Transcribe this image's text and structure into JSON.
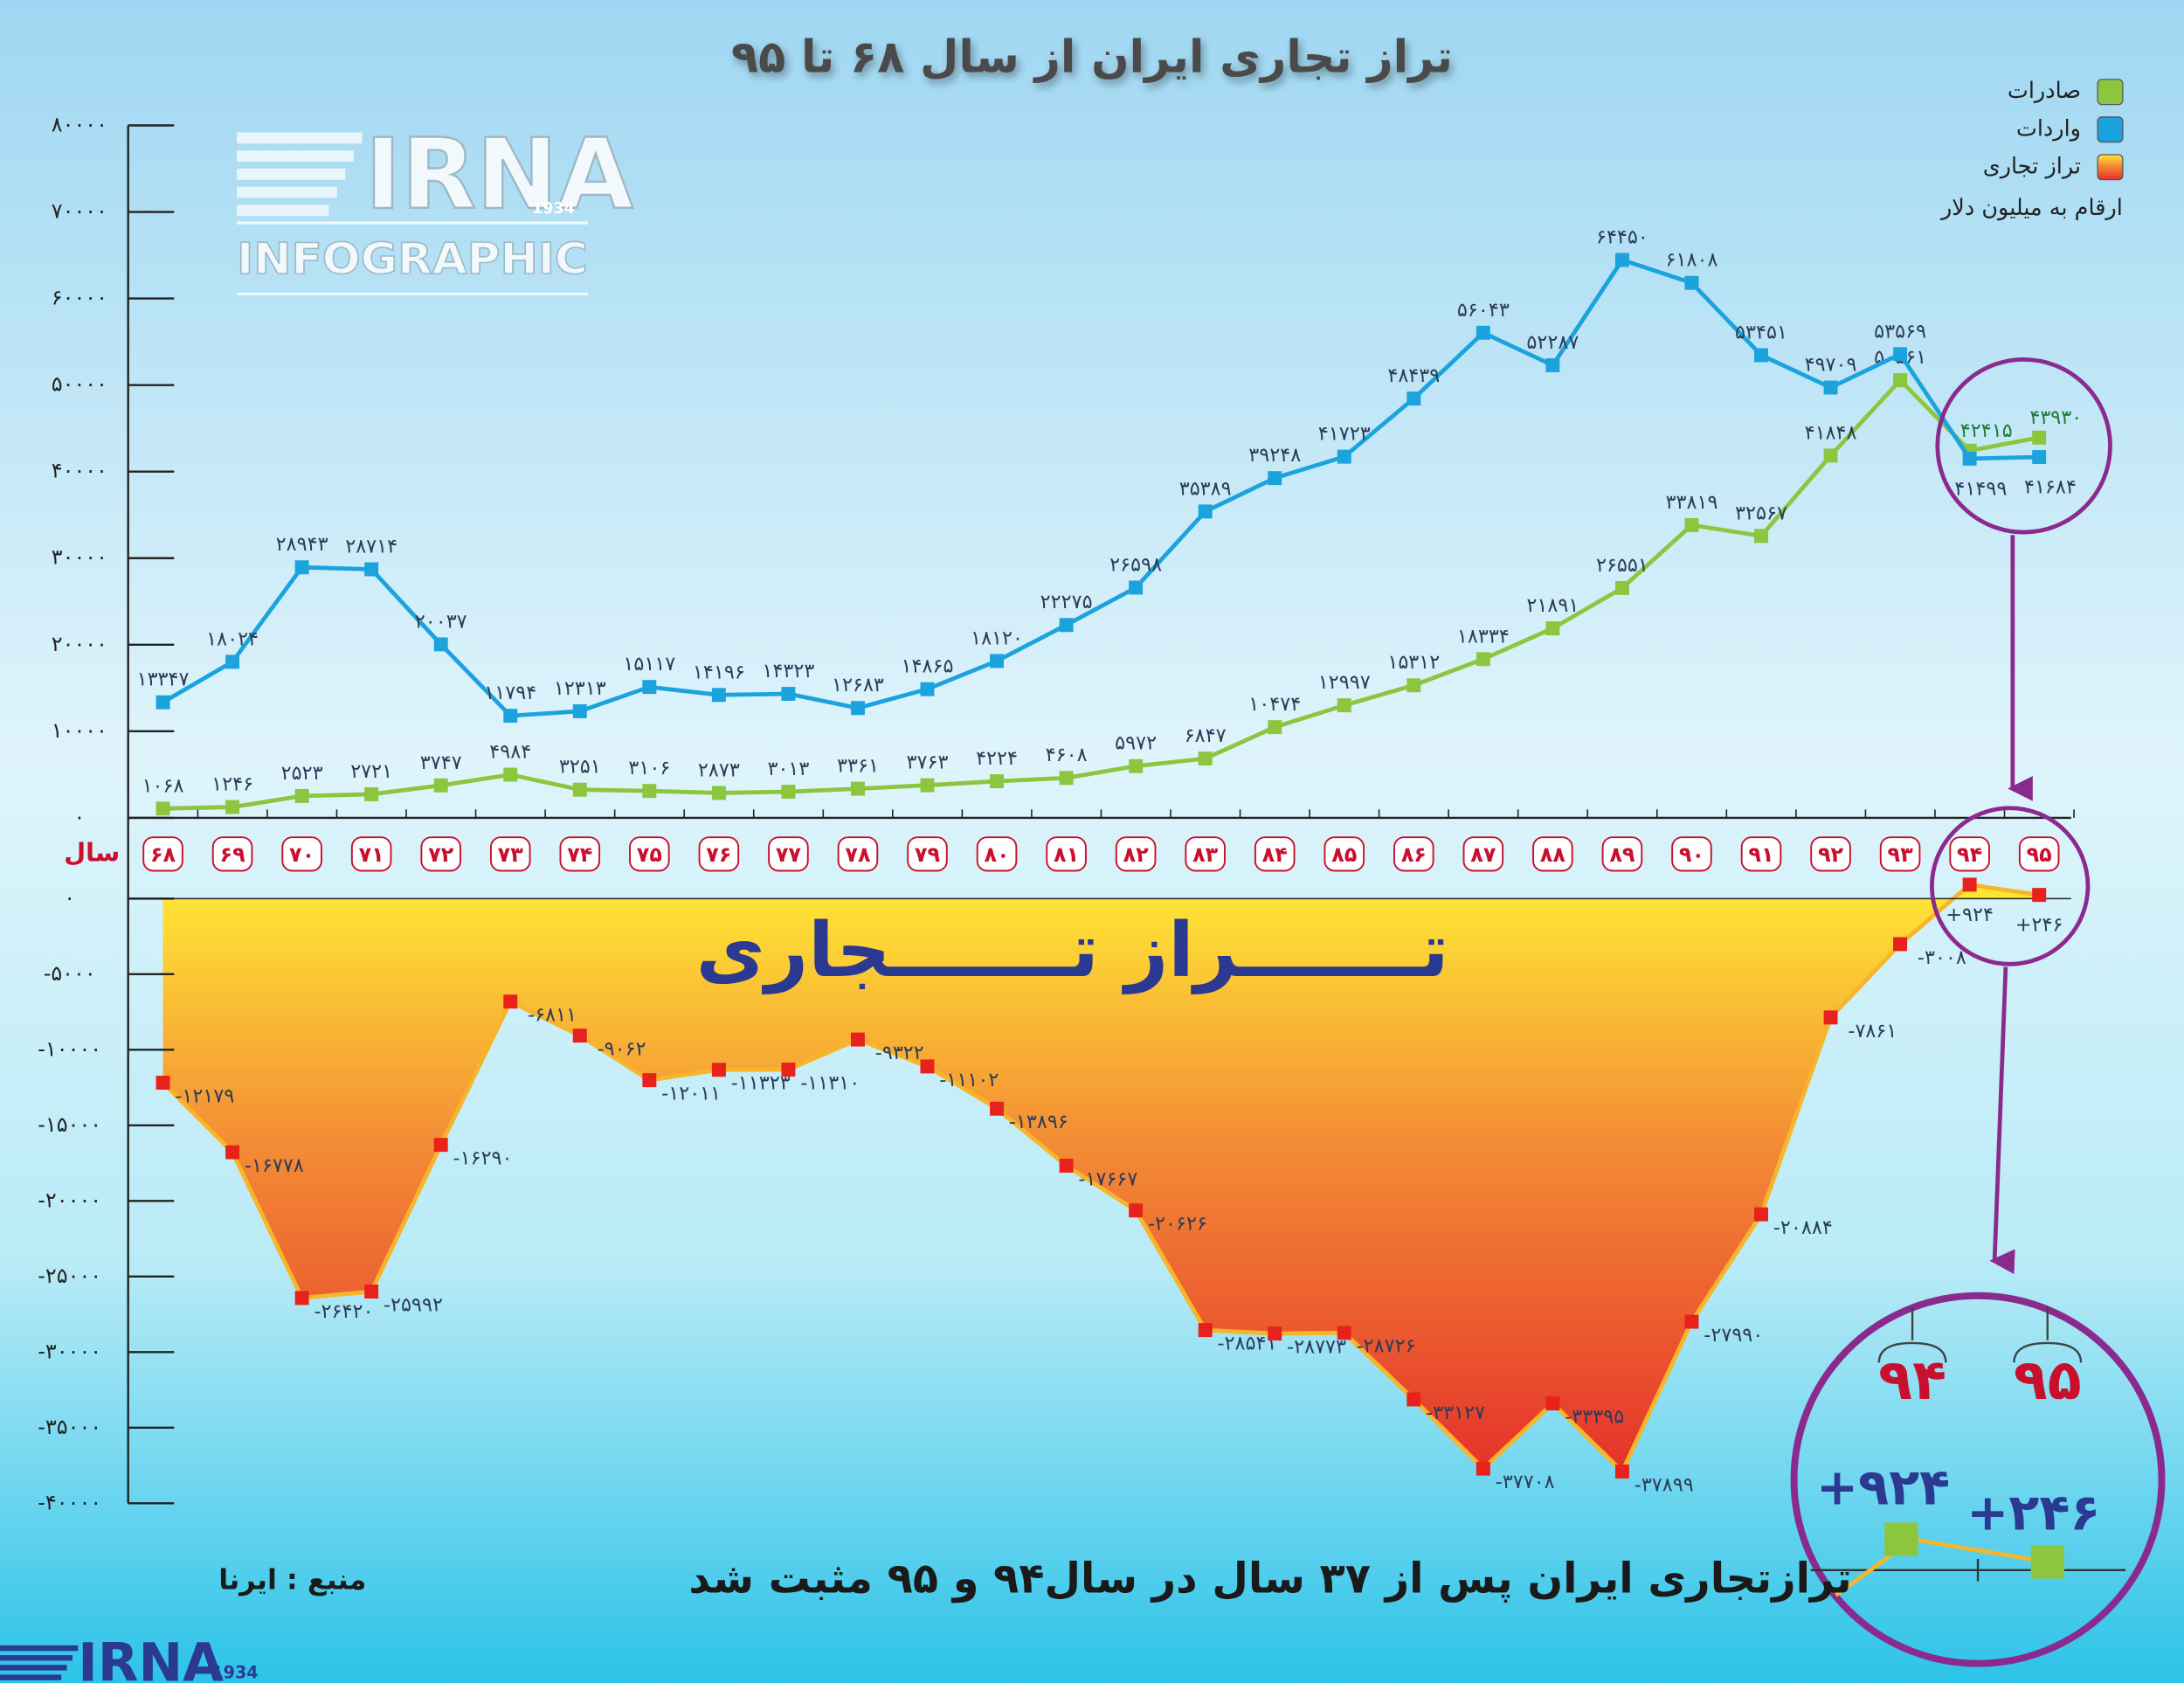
{
  "logo": {
    "name": "IRNA",
    "subtitle": "INFOGRAPHIC",
    "year": "1934"
  },
  "footer": {
    "headline": "ترازتجاری ایران پس از ۳۷ سال در سال۹۴ و ۹۵ مثبت شد",
    "source": "منبع : ایرنا"
  },
  "chart_data": [
    {
      "type": "line",
      "title": "تراز تجاری ایران از سال ۶۸ تا ۹۵",
      "unit_note": "ارقام به میلیون دلار",
      "x_label": "سال",
      "legend": "top-right",
      "categories": [
        "۶۸",
        "۶۹",
        "۷۰",
        "۷۱",
        "۷۲",
        "۷۳",
        "۷۴",
        "۷۵",
        "۷۶",
        "۷۷",
        "۷۸",
        "۷۹",
        "۸۰",
        "۸۱",
        "۸۲",
        "۸۳",
        "۸۴",
        "۸۵",
        "۸۶",
        "۸۷",
        "۸۸",
        "۸۹",
        "۹۰",
        "۹۱",
        "۹۲",
        "۹۳",
        "۹۴",
        "۹۵"
      ],
      "ylim": [
        0,
        80000
      ],
      "yticks": [
        {
          "value": 0,
          "label": "۰"
        },
        {
          "value": 10000,
          "label": "۱۰۰۰۰"
        },
        {
          "value": 20000,
          "label": "۲۰۰۰۰"
        },
        {
          "value": 30000,
          "label": "۳۰۰۰۰"
        },
        {
          "value": 40000,
          "label": "۴۰۰۰۰"
        },
        {
          "value": 50000,
          "label": "۵۰۰۰۰"
        },
        {
          "value": 60000,
          "label": "۶۰۰۰۰"
        },
        {
          "value": 70000,
          "label": "۷۰۰۰۰"
        },
        {
          "value": 80000,
          "label": "۸۰۰۰۰"
        }
      ],
      "series": [
        {
          "name": "صادرات",
          "color": "#8cc63f",
          "values": [
            1068,
            1246,
            2523,
            2721,
            3747,
            4984,
            3251,
            3106,
            2873,
            3013,
            3361,
            3763,
            4224,
            4608,
            5972,
            6847,
            10474,
            12997,
            15312,
            18334,
            21891,
            26551,
            33819,
            32567,
            41848,
            50561,
            42415,
            43930
          ],
          "value_labels": [
            "۱۰۶۸",
            "۱۲۴۶",
            "۲۵۲۳",
            "۲۷۲۱",
            "۳۷۴۷",
            "۴۹۸۴",
            "۳۲۵۱",
            "۳۱۰۶",
            "۲۸۷۳",
            "۳۰۱۳",
            "۳۳۶۱",
            "۳۷۶۳",
            "۴۲۲۴",
            "۴۶۰۸",
            "۵۹۷۲",
            "۶۸۴۷",
            "۱۰۴۷۴",
            "۱۲۹۹۷",
            "۱۵۳۱۲",
            "۱۸۳۳۴",
            "۲۱۸۹۱",
            "۲۶۵۵۱",
            "۳۳۸۱۹",
            "۳۲۵۶۷",
            "۴۱۸۴۸",
            "۵۰۵۶۱",
            "۴۲۴۱۵",
            "۴۳۹۳۰"
          ]
        },
        {
          "name": "واردات",
          "color": "#1ba3de",
          "values": [
            13347,
            18024,
            28943,
            28714,
            20037,
            11794,
            12313,
            15117,
            14196,
            14323,
            12683,
            14865,
            18120,
            22275,
            26598,
            35389,
            39248,
            41723,
            48439,
            56043,
            52287,
            64450,
            61808,
            53451,
            49709,
            53569,
            41499,
            41684
          ],
          "value_labels": [
            "۱۳۳۴۷",
            "۱۸۰۲۴",
            "۲۸۹۴۳",
            "۲۸۷۱۴",
            "۲۰۰۳۷",
            "۱۱۷۹۴",
            "۱۲۳۱۳",
            "۱۵۱۱۷",
            "۱۴۱۹۶",
            "۱۴۳۲۳",
            "۱۲۶۸۳",
            "۱۴۸۶۵",
            "۱۸۱۲۰",
            "۲۲۲۷۵",
            "۲۶۵۹۸",
            "۳۵۳۸۹",
            "۳۹۲۴۸",
            "۴۱۷۲۳",
            "۴۸۴۳۹",
            "۵۶۰۴۳",
            "۵۲۲۸۷",
            "۶۴۴۵۰",
            "۶۱۸۰۸",
            "۵۳۴۵۱",
            "۴۹۷۰۹",
            "۵۳۵۶۹",
            "۴۱۴۹۹",
            "۴۱۶۸۴"
          ]
        }
      ]
    },
    {
      "type": "area",
      "annotation": "تـــــــراز تـــــــجاری",
      "ylim": [
        -40000,
        0
      ],
      "yticks": [
        {
          "value": 0,
          "label": "۰"
        },
        {
          "value": -5000,
          "label": "-۵۰۰۰"
        },
        {
          "value": -10000,
          "label": "-۱۰۰۰۰"
        },
        {
          "value": -15000,
          "label": "-۱۵۰۰۰"
        },
        {
          "value": -20000,
          "label": "-۲۰۰۰۰"
        },
        {
          "value": -25000,
          "label": "-۲۵۰۰۰"
        },
        {
          "value": -30000,
          "label": "-۳۰۰۰۰"
        },
        {
          "value": -35000,
          "label": "-۳۵۰۰۰"
        },
        {
          "value": -40000,
          "label": "-۴۰۰۰۰"
        }
      ],
      "series": [
        {
          "name": "تراز تجاری",
          "color": "#e8211c",
          "values": [
            -12179,
            -16778,
            -26420,
            -25992,
            -16290,
            -6811,
            -9062,
            -12011,
            -11323,
            -11310,
            -9322,
            -11102,
            -13896,
            -17667,
            -20626,
            -28541,
            -28773,
            -28726,
            -33127,
            -37708,
            -33395,
            -37899,
            -27990,
            -20884,
            -7861,
            -3008,
            924,
            246
          ],
          "value_labels": [
            "-۱۲۱۷۹",
            "-۱۶۷۷۸",
            "-۲۶۴۲۰",
            "-۲۵۹۹۲",
            "-۱۶۲۹۰",
            "-۶۸۱۱",
            "-۹۰۶۲",
            "-۱۲۰۱۱",
            "-۱۱۳۲۳",
            "-۱۱۳۱۰",
            "-۹۳۲۲",
            "-۱۱۱۰۲",
            "-۱۳۸۹۶",
            "-۱۷۶۶۷",
            "-۲۰۶۲۶",
            "-۲۸۵۴۱",
            "-۲۸۷۷۳",
            "-۲۸۷۲۶",
            "-۳۳۱۲۷",
            "-۳۷۷۰۸",
            "-۳۳۳۹۵",
            "-۳۷۸۹۹",
            "-۲۷۹۹۰",
            "-۲۰۸۸۴",
            "-۷۸۶۱",
            "-۳۰۰۸",
            "+۹۲۴",
            "+۲۴۶"
          ]
        }
      ]
    }
  ]
}
